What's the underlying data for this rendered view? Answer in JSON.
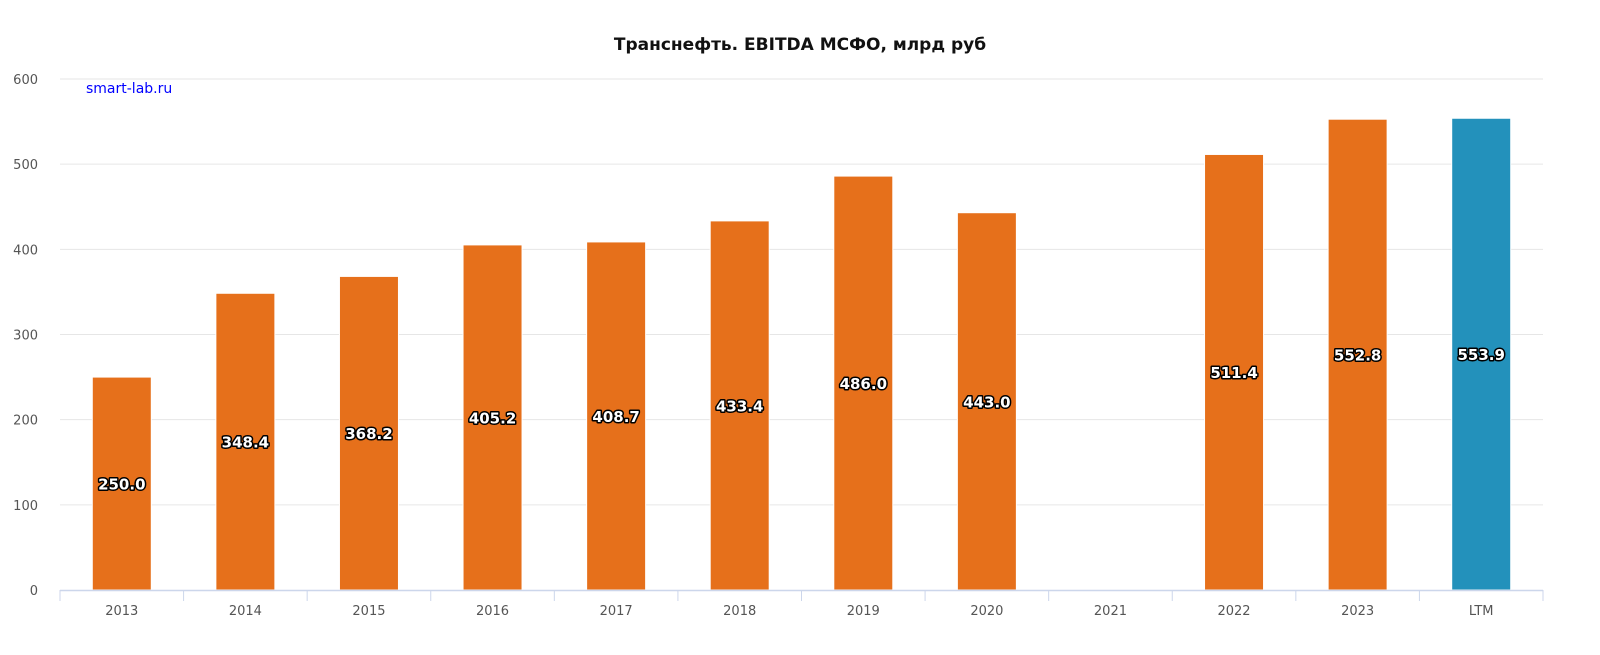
{
  "chart_data": {
    "type": "bar",
    "title": "Транснефть. EBITDA МСФО, млрд руб",
    "watermark": "smart-lab.ru",
    "xlabel": "",
    "ylabel": "",
    "ylim": [
      0,
      600
    ],
    "yticks": [
      0,
      100,
      200,
      300,
      400,
      500,
      600
    ],
    "grid": true,
    "categories": [
      "2013",
      "2014",
      "2015",
      "2016",
      "2017",
      "2018",
      "2019",
      "2020",
      "2021",
      "2022",
      "2023",
      "LTM"
    ],
    "values": [
      250.0,
      348.4,
      368.2,
      405.2,
      408.7,
      433.4,
      486.0,
      443.0,
      null,
      511.4,
      552.8,
      553.9
    ],
    "data_labels": [
      "250.0",
      "348.4",
      "368.2",
      "405.2",
      "408.7",
      "433.4",
      "486.0",
      "443.0",
      "",
      "511.4",
      "552.8",
      "553.9"
    ],
    "colors": {
      "default": "#e6701b",
      "LTM": "#2391bb"
    },
    "grid_color": "#e6e6e6",
    "axis_color": "#ccd6eb"
  }
}
